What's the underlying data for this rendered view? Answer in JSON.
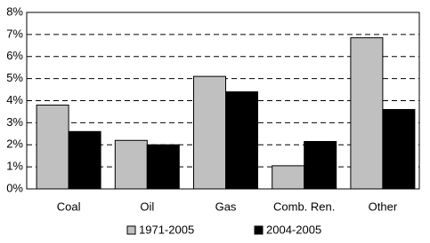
{
  "chart_data": {
    "type": "bar",
    "categories": [
      "Coal",
      "Oil",
      "Gas",
      "Comb. Ren.",
      "Other"
    ],
    "series": [
      {
        "name": "1971-2005",
        "color": "#c0c0c0",
        "values": [
          3.8,
          2.2,
          5.1,
          1.05,
          6.85
        ]
      },
      {
        "name": "2004-2005",
        "color": "#000000",
        "values": [
          2.6,
          2.0,
          4.4,
          2.15,
          3.6
        ]
      }
    ],
    "ylim": [
      0,
      8
    ],
    "yticks": [
      {
        "value": 0,
        "label": "0%"
      },
      {
        "value": 1,
        "label": "1%"
      },
      {
        "value": 2,
        "label": "2%"
      },
      {
        "value": 3,
        "label": "3%"
      },
      {
        "value": 4,
        "label": "4%"
      },
      {
        "value": 5,
        "label": "5%"
      },
      {
        "value": 6,
        "label": "6%"
      },
      {
        "value": 7,
        "label": "7%"
      },
      {
        "value": 8,
        "label": "8%"
      }
    ],
    "grid": true
  }
}
